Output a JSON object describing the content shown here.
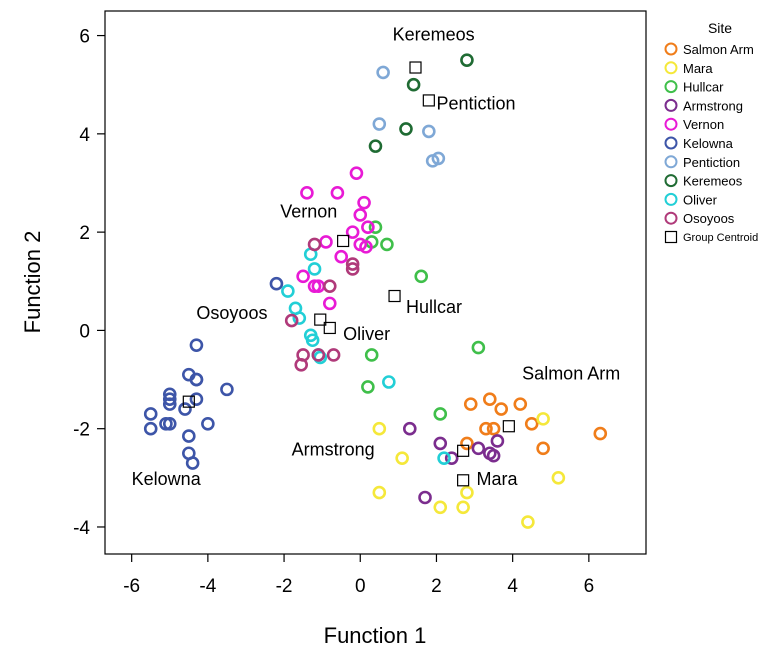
{
  "chart_data": {
    "type": "scatter",
    "xlabel": "Function 1",
    "ylabel": "Function 2",
    "xlim": [
      -6.7,
      7.5
    ],
    "ylim": [
      -4.55,
      6.5
    ],
    "xticks": [
      -6,
      -4,
      -2,
      0,
      2,
      4,
      6
    ],
    "yticks": [
      -4,
      -2,
      0,
      2,
      4,
      6
    ],
    "xtick_labels": [
      "-6",
      "-4",
      "-2",
      "0",
      "2",
      "4",
      "6"
    ],
    "ytick_labels": [
      "-4",
      "-2",
      "0",
      "2",
      "4",
      "6"
    ],
    "grid": false,
    "legend": {
      "title": "Site",
      "placement": "right",
      "centroid_label": "Group Centroid"
    },
    "series": [
      {
        "name": "Salmon Arm",
        "color": "#f07d1a",
        "points": [
          [
            2.9,
            -1.5
          ],
          [
            3.4,
            -1.4
          ],
          [
            3.7,
            -1.6
          ],
          [
            4.2,
            -1.5
          ],
          [
            4.5,
            -1.9
          ],
          [
            3.3,
            -2.0
          ],
          [
            3.5,
            -2.0
          ],
          [
            2.8,
            -2.3
          ],
          [
            4.8,
            -2.4
          ],
          [
            6.3,
            -2.1
          ]
        ]
      },
      {
        "name": "Mara",
        "color": "#f5e83a",
        "points": [
          [
            4.8,
            -1.8
          ],
          [
            0.5,
            -2.0
          ],
          [
            1.1,
            -2.6
          ],
          [
            0.5,
            -3.3
          ],
          [
            2.8,
            -3.3
          ],
          [
            2.1,
            -3.6
          ],
          [
            2.7,
            -3.6
          ],
          [
            5.2,
            -3.0
          ],
          [
            4.4,
            -3.9
          ]
        ]
      },
      {
        "name": "Hullcar",
        "color": "#3fbf4a",
        "points": [
          [
            0.4,
            2.1
          ],
          [
            0.3,
            1.8
          ],
          [
            0.7,
            1.75
          ],
          [
            1.6,
            1.1
          ],
          [
            0.3,
            -0.5
          ],
          [
            3.1,
            -0.35
          ],
          [
            0.2,
            -1.15
          ],
          [
            2.1,
            -1.7
          ]
        ]
      },
      {
        "name": "Armstrong",
        "color": "#7b2d8e",
        "points": [
          [
            1.3,
            -2.0
          ],
          [
            2.1,
            -2.3
          ],
          [
            3.1,
            -2.4
          ],
          [
            3.4,
            -2.5
          ],
          [
            3.5,
            -2.55
          ],
          [
            3.6,
            -2.25
          ],
          [
            2.4,
            -2.6
          ],
          [
            1.7,
            -3.4
          ]
        ]
      },
      {
        "name": "Vernon",
        "color": "#e81ad5",
        "points": [
          [
            -1.4,
            2.8
          ],
          [
            -0.6,
            2.8
          ],
          [
            -0.1,
            3.2
          ],
          [
            0.1,
            2.6
          ],
          [
            0.0,
            2.35
          ],
          [
            -0.2,
            2.0
          ],
          [
            0.2,
            2.1
          ],
          [
            0.0,
            1.75
          ],
          [
            0.15,
            1.7
          ],
          [
            -0.5,
            1.5
          ],
          [
            -0.9,
            1.8
          ],
          [
            -1.5,
            1.1
          ],
          [
            -1.2,
            0.9
          ],
          [
            -1.1,
            0.9
          ],
          [
            -0.8,
            0.55
          ]
        ]
      },
      {
        "name": "Kelowna",
        "color": "#3d55a8",
        "points": [
          [
            -2.2,
            0.95
          ],
          [
            -4.3,
            -0.3
          ],
          [
            -4.5,
            -0.9
          ],
          [
            -4.3,
            -1.0
          ],
          [
            -4.3,
            -1.0
          ],
          [
            -3.5,
            -1.2
          ],
          [
            -5.0,
            -1.3
          ],
          [
            -5.0,
            -1.4
          ],
          [
            -5.0,
            -1.5
          ],
          [
            -4.3,
            -1.4
          ],
          [
            -4.6,
            -1.6
          ],
          [
            -5.5,
            -1.7
          ],
          [
            -5.0,
            -1.9
          ],
          [
            -5.1,
            -1.9
          ],
          [
            -5.5,
            -2.0
          ],
          [
            -4.0,
            -1.9
          ],
          [
            -4.5,
            -2.15
          ],
          [
            -4.5,
            -2.5
          ],
          [
            -4.4,
            -2.7
          ]
        ]
      },
      {
        "name": "Pentiction",
        "color": "#7fa8d6",
        "points": [
          [
            0.6,
            5.25
          ],
          [
            0.5,
            4.2
          ],
          [
            1.8,
            4.05
          ],
          [
            1.9,
            3.45
          ],
          [
            2.05,
            3.5
          ]
        ]
      },
      {
        "name": "Keremeos",
        "color": "#1f6b33",
        "points": [
          [
            2.8,
            5.5
          ],
          [
            1.4,
            5.0
          ],
          [
            1.2,
            4.1
          ],
          [
            0.4,
            3.75
          ]
        ]
      },
      {
        "name": "Oliver",
        "color": "#22cfd6",
        "points": [
          [
            -1.3,
            1.55
          ],
          [
            -1.2,
            1.25
          ],
          [
            -1.9,
            0.8
          ],
          [
            -1.7,
            0.45
          ],
          [
            -1.6,
            0.25
          ],
          [
            -1.3,
            -0.1
          ],
          [
            -1.25,
            -0.2
          ],
          [
            -1.1,
            -0.5
          ],
          [
            -1.05,
            -0.55
          ],
          [
            0.75,
            -1.05
          ],
          [
            2.2,
            -2.6
          ]
        ]
      },
      {
        "name": "Osoyoos",
        "color": "#b03a7a",
        "points": [
          [
            -1.2,
            1.75
          ],
          [
            -0.8,
            0.9
          ],
          [
            -0.2,
            1.35
          ],
          [
            -0.2,
            1.25
          ],
          [
            -1.8,
            0.2
          ],
          [
            -1.5,
            -0.5
          ],
          [
            -1.1,
            -0.5
          ],
          [
            -0.7,
            -0.5
          ],
          [
            -1.55,
            -0.7
          ]
        ]
      }
    ],
    "centroids": [
      {
        "label": "Keremeos",
        "x": 1.45,
        "y": 5.35
      },
      {
        "label": "Pentiction",
        "x": 1.8,
        "y": 4.68
      },
      {
        "label": "Vernon",
        "x": -0.45,
        "y": 1.82
      },
      {
        "label": "Hullcar",
        "x": 0.9,
        "y": 0.7
      },
      {
        "label": "Osoyoos",
        "x": -1.05,
        "y": 0.22
      },
      {
        "label": "Oliver",
        "x": -0.8,
        "y": 0.05
      },
      {
        "label": "Salmon Arm",
        "x": 3.9,
        "y": -1.95
      },
      {
        "label": "Armstrong",
        "x": 2.7,
        "y": -2.45
      },
      {
        "label": "Mara",
        "x": 2.7,
        "y": -3.05
      },
      {
        "label": "Kelowna",
        "x": -4.5,
        "y": -1.45
      }
    ],
    "annotations": [
      {
        "text": "Keremeos",
        "x": 0.85,
        "y": 5.9
      },
      {
        "text": "Pentiction",
        "x": 2.0,
        "y": 4.5
      },
      {
        "text": "Vernon",
        "x": -2.1,
        "y": 2.3
      },
      {
        "text": "Hullcar",
        "x": 1.2,
        "y": 0.35
      },
      {
        "text": "Osoyoos",
        "x": -4.3,
        "y": 0.23
      },
      {
        "text": "Oliver",
        "x": -0.45,
        "y": -0.2
      },
      {
        "text": "Salmon Arm",
        "x": 4.25,
        "y": -1.0
      },
      {
        "text": "Armstrong",
        "x": -1.8,
        "y": -2.55
      },
      {
        "text": "Mara",
        "x": 3.05,
        "y": -3.15
      },
      {
        "text": "Kelowna",
        "x": -6.0,
        "y": -3.15
      }
    ]
  }
}
